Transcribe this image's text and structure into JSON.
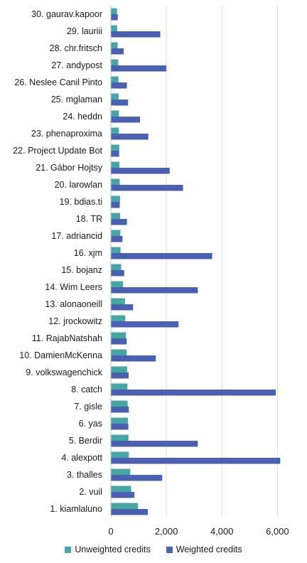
{
  "chart_data": {
    "type": "bar",
    "orientation": "horizontal",
    "categories": [
      "30. gaurav.kapoor",
      "29. lauriii",
      "28. chr.fritsch",
      "27. andypost",
      "26. Neslee Canil Pinto",
      "25. mglaman",
      "24. heddn",
      "23. phenaproxima",
      "22. Project Update Bot",
      "21. Gábor Hojtsy",
      "20. larowlan",
      "19. bdias.ti",
      "18. TR",
      "17. adriancid",
      "16. xjm",
      "15. bojanz",
      "14. Wim Leers",
      "13. alonaoneill",
      "12. jrockowitz",
      "11. RajabNatshah",
      "10. DamienMcKenna",
      "9. volkswagenchick",
      "8. catch",
      "7. gisle",
      "6. yas",
      "5. Berdir",
      "4. alexpott",
      "3. thalles",
      "2. vuil",
      "1. kiamlaluno"
    ],
    "series": [
      {
        "name": "Unweighted credits",
        "color": "#4aa3a5",
        "values": [
          220,
          225,
          245,
          265,
          275,
          280,
          290,
          290,
          300,
          310,
          320,
          330,
          335,
          345,
          350,
          370,
          440,
          510,
          520,
          545,
          570,
          590,
          595,
          605,
          615,
          635,
          650,
          700,
          730,
          980
        ]
      },
      {
        "name": "Weighted credits",
        "color": "#4a62ad",
        "values": [
          250,
          1780,
          460,
          2000,
          580,
          620,
          1050,
          1350,
          300,
          2120,
          2600,
          320,
          580,
          420,
          3650,
          480,
          3130,
          800,
          2440,
          570,
          1620,
          640,
          5940,
          650,
          630,
          3130,
          6100,
          1850,
          850,
          1330
        ]
      }
    ],
    "x_ticks": [
      "0",
      "2,000",
      "4,000",
      "6,000"
    ],
    "x_tick_values": [
      0,
      2000,
      4000,
      6000
    ],
    "xlim": [
      0,
      6400
    ],
    "grid": "vertical",
    "legend_position": "bottom"
  }
}
